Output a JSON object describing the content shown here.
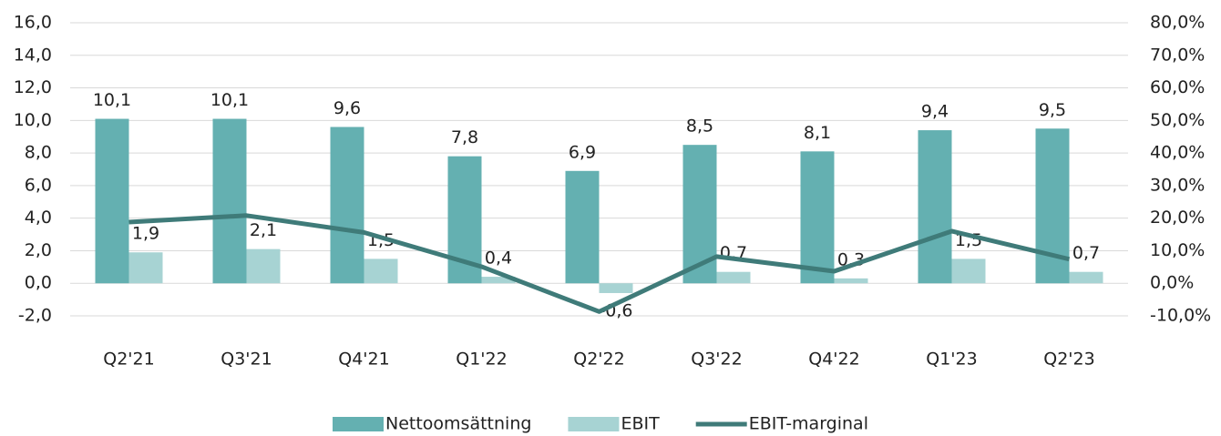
{
  "chart_data": {
    "type": "bar",
    "categories": [
      "Q2'21",
      "Q3'21",
      "Q4'21",
      "Q1'22",
      "Q2'22",
      "Q3'22",
      "Q4'22",
      "Q1'23",
      "Q2'23"
    ],
    "series": [
      {
        "name": "Nettoomsättning",
        "type": "bar",
        "color": "#64b0b1",
        "values": [
          10.1,
          10.1,
          9.6,
          7.8,
          6.9,
          8.5,
          8.1,
          9.4,
          9.5
        ],
        "value_labels": [
          "10,1",
          "10,1",
          "9,6",
          "7,8",
          "6,9",
          "8,5",
          "8,1",
          "9,4",
          "9,5"
        ]
      },
      {
        "name": "EBIT",
        "type": "bar",
        "color": "#a7d3d3",
        "values": [
          1.9,
          2.1,
          1.5,
          0.4,
          -0.6,
          0.7,
          0.3,
          1.5,
          0.7
        ],
        "value_labels": [
          "1,9",
          "2,1",
          "1,5",
          "0,4",
          "-0,6",
          "0,7",
          "0,3",
          "1,5",
          "0,7"
        ]
      },
      {
        "name": "EBIT-marginal",
        "type": "line",
        "axis": "y2",
        "color": "#3f7b79",
        "values": [
          18.8,
          20.8,
          15.6,
          5.1,
          -8.7,
          8.2,
          3.7,
          16.0,
          7.4
        ]
      }
    ],
    "ylim": [
      -2,
      16
    ],
    "yticks": [
      {
        "value": -2,
        "label": "-2,0"
      },
      {
        "value": 0,
        "label": "0,0"
      },
      {
        "value": 2,
        "label": "2,0"
      },
      {
        "value": 4,
        "label": "4,0"
      },
      {
        "value": 6,
        "label": "6,0"
      },
      {
        "value": 8,
        "label": "8,0"
      },
      {
        "value": 10,
        "label": "10,0"
      },
      {
        "value": 12,
        "label": "12,0"
      },
      {
        "value": 14,
        "label": "14,0"
      },
      {
        "value": 16,
        "label": "16,0"
      }
    ],
    "y2lim": [
      -10,
      80
    ],
    "y2ticks": [
      {
        "value": -10,
        "label": "-10,0%"
      },
      {
        "value": 0,
        "label": "0,0%"
      },
      {
        "value": 10,
        "label": "10,0%"
      },
      {
        "value": 20,
        "label": "20,0%"
      },
      {
        "value": 30,
        "label": "30,0%"
      },
      {
        "value": 40,
        "label": "40,0%"
      },
      {
        "value": 50,
        "label": "50,0%"
      },
      {
        "value": 60,
        "label": "60,0%"
      },
      {
        "value": 70,
        "label": "70,0%"
      },
      {
        "value": 80,
        "label": "80,0%"
      }
    ],
    "grid": true,
    "legend": "bottom"
  }
}
